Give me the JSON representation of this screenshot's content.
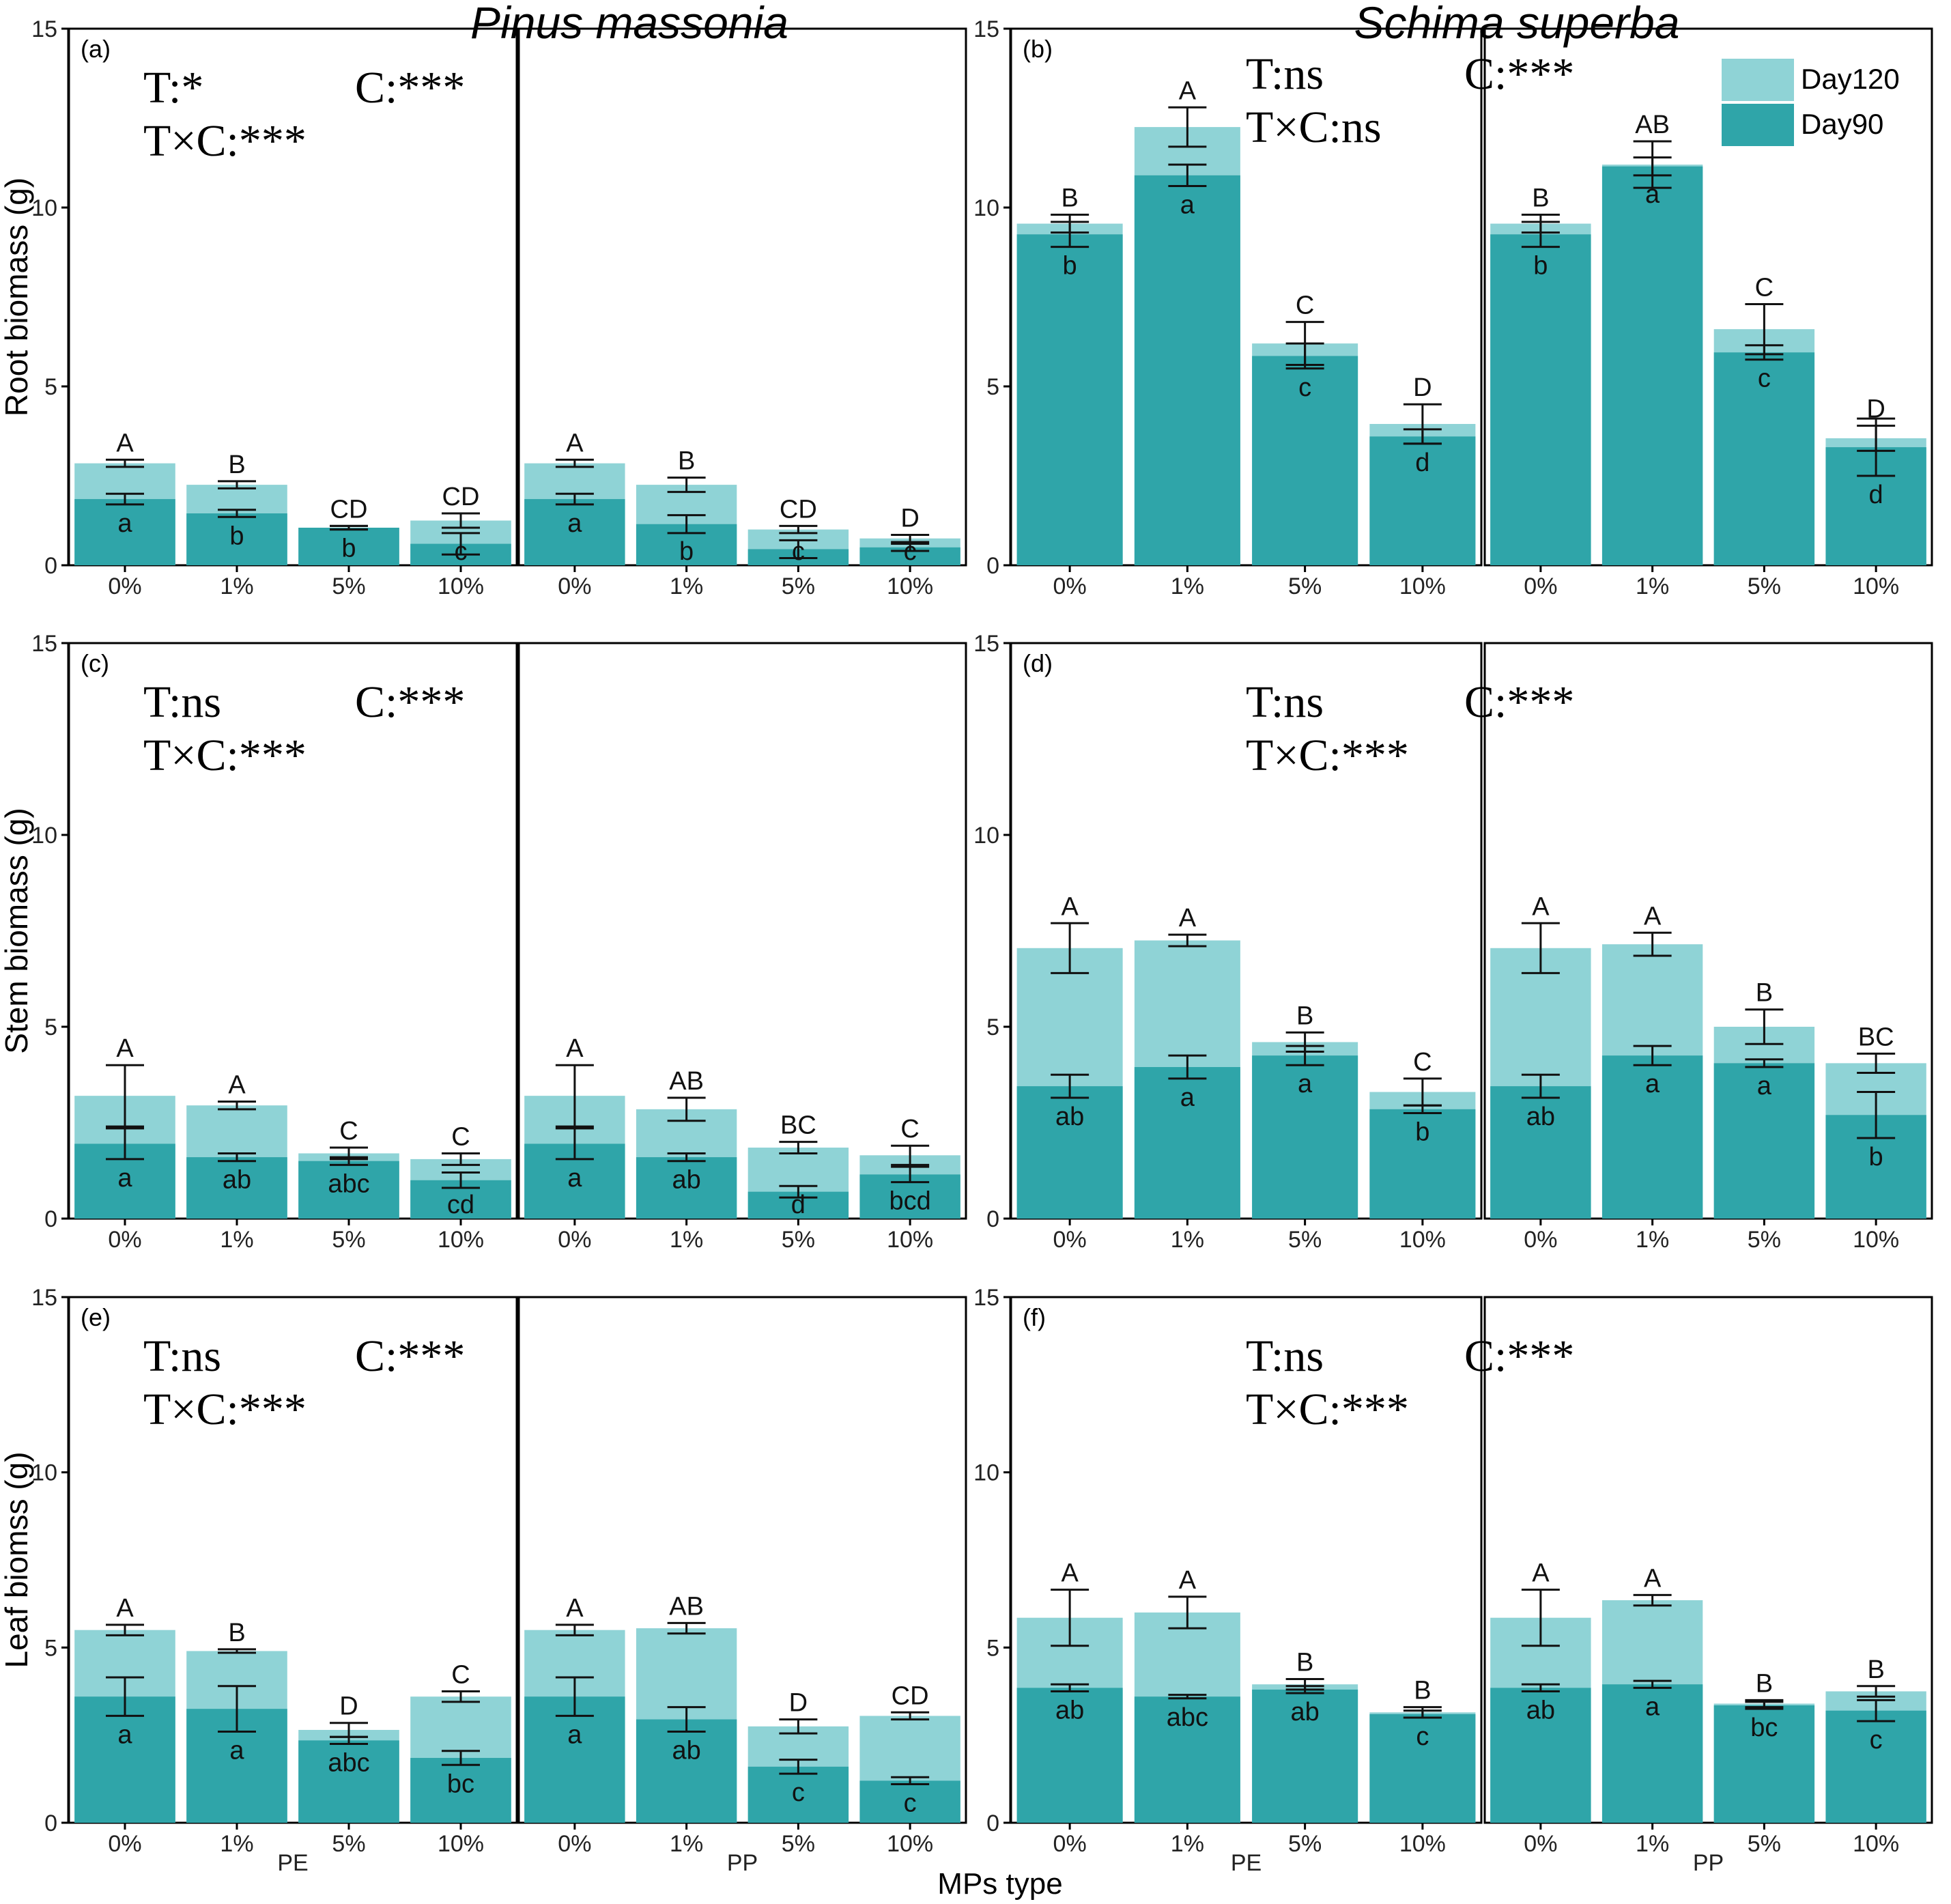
{
  "species_titles": [
    "Pinus massonia",
    "Schima superba"
  ],
  "x_axis_title": "MPs type",
  "colors": {
    "day120": "#8fd3d6",
    "day90": "#2fa5a9",
    "axis": "#000000"
  },
  "legend": {
    "placement": "top-right of panel (b)",
    "items": [
      {
        "label": "Day120",
        "color": "#8fd3d6"
      },
      {
        "label": "Day90",
        "color": "#2fa5a9"
      }
    ]
  },
  "chart_data": [
    {
      "type": "bar",
      "stacked": true,
      "panel": "(a)",
      "species": "Pinus massonia",
      "ylabel": "Root  biomass (g)",
      "ylim": [
        0,
        15
      ],
      "yticks": [
        "0",
        "5",
        "10",
        "15"
      ],
      "stats": [
        "T:*",
        "C:***",
        "T×C:***"
      ],
      "groups": [
        {
          "label": "PE",
          "show_label": false
        },
        {
          "label": "PP",
          "show_label": false
        }
      ],
      "categories": [
        "0%",
        "1%",
        "5%",
        "10%"
      ],
      "day90": [
        1.85,
        1.45,
        1.05,
        0.6,
        1.85,
        1.15,
        0.45,
        0.5
      ],
      "day120": [
        2.85,
        2.25,
        1.05,
        1.25,
        2.85,
        2.25,
        1.0,
        0.75
      ],
      "err_day90": [
        0.15,
        0.1,
        0.05,
        0.3,
        0.15,
        0.25,
        0.25,
        0.1
      ],
      "err_day120": [
        0.1,
        0.1,
        0.05,
        0.2,
        0.1,
        0.2,
        0.1,
        0.1
      ],
      "upper_letters": [
        "A",
        "B",
        "CD",
        "CD",
        "A",
        "B",
        "CD",
        "D"
      ],
      "lower_letters": [
        "a",
        "b",
        "b",
        "c",
        "a",
        "b",
        "c",
        "c"
      ]
    },
    {
      "type": "bar",
      "stacked": true,
      "panel": "(b)",
      "species": "Schima superba",
      "ylabel": "",
      "ylim": [
        0,
        15
      ],
      "yticks": [
        "0",
        "5",
        "10",
        "15"
      ],
      "stats": [
        "T:ns",
        "C:***",
        "T×C:ns"
      ],
      "groups": [
        {
          "label": "PE",
          "show_label": false
        },
        {
          "label": "PP",
          "show_label": false
        }
      ],
      "categories": [
        "0%",
        "1%",
        "5%",
        "10%"
      ],
      "day90": [
        9.25,
        10.9,
        5.85,
        3.6,
        9.25,
        11.15,
        5.95,
        3.3
      ],
      "day120": [
        9.55,
        12.25,
        6.2,
        3.95,
        9.55,
        11.2,
        6.6,
        3.55
      ],
      "err_day90": [
        0.35,
        0.3,
        0.35,
        0.2,
        0.35,
        0.25,
        0.2,
        0.8
      ],
      "err_day120": [
        0.25,
        0.55,
        0.6,
        0.55,
        0.25,
        0.65,
        0.7,
        0.35
      ],
      "upper_letters": [
        "B",
        "A",
        "C",
        "D",
        "B",
        "AB",
        "C",
        "D"
      ],
      "lower_letters": [
        "b",
        "a",
        "c",
        "d",
        "b",
        "a",
        "c",
        "d"
      ]
    },
    {
      "type": "bar",
      "stacked": true,
      "panel": "(c)",
      "species": "Pinus massonia",
      "ylabel": "Stem biomass (g)",
      "ylim": [
        0,
        15
      ],
      "yticks": [
        "0",
        "5",
        "10",
        "15"
      ],
      "stats": [
        "T:ns",
        "C:***",
        "T×C:***"
      ],
      "groups": [
        {
          "label": "PE",
          "show_label": false
        },
        {
          "label": "PP",
          "show_label": false
        }
      ],
      "categories": [
        "0%",
        "1%",
        "5%",
        "10%"
      ],
      "day90": [
        1.95,
        1.6,
        1.5,
        1.0,
        1.95,
        1.6,
        0.7,
        1.15
      ],
      "day120": [
        3.2,
        2.95,
        1.7,
        1.55,
        3.2,
        2.85,
        1.85,
        1.65
      ],
      "err_day90": [
        0.4,
        0.1,
        0.1,
        0.2,
        0.4,
        0.1,
        0.15,
        0.2
      ],
      "err_day120": [
        0.8,
        0.1,
        0.15,
        0.15,
        0.8,
        0.3,
        0.15,
        0.25
      ],
      "upper_letters": [
        "A",
        "A",
        "C",
        "C",
        "A",
        "AB",
        "BC",
        "C"
      ],
      "lower_letters": [
        "a",
        "ab",
        "abc",
        "cd",
        "a",
        "ab",
        "d",
        "bcd"
      ]
    },
    {
      "type": "bar",
      "stacked": true,
      "panel": "(d)",
      "species": "Schima superba",
      "ylabel": "",
      "ylim": [
        0,
        15
      ],
      "yticks": [
        "0",
        "5",
        "10",
        "15"
      ],
      "stats": [
        "T:ns",
        "C:***",
        "T×C:***"
      ],
      "groups": [
        {
          "label": "PE",
          "show_label": false
        },
        {
          "label": "PP",
          "show_label": false
        }
      ],
      "categories": [
        "0%",
        "1%",
        "5%",
        "10%"
      ],
      "day90": [
        3.45,
        3.95,
        4.25,
        2.85,
        3.45,
        4.25,
        4.05,
        2.7
      ],
      "day120": [
        7.05,
        7.25,
        4.6,
        3.3,
        7.05,
        7.15,
        5.0,
        4.05
      ],
      "err_day90": [
        0.3,
        0.3,
        0.25,
        0.1,
        0.3,
        0.25,
        0.1,
        0.6
      ],
      "err_day120": [
        0.65,
        0.15,
        0.25,
        0.35,
        0.65,
        0.3,
        0.45,
        0.25
      ],
      "upper_letters": [
        "A",
        "A",
        "B",
        "C",
        "A",
        "A",
        "B",
        "BC"
      ],
      "lower_letters": [
        "ab",
        "a",
        "a",
        "b",
        "ab",
        "a",
        "a",
        "b"
      ]
    },
    {
      "type": "bar",
      "stacked": true,
      "panel": "(e)",
      "species": "Pinus massonia",
      "ylabel": "Leaf  biomss (g)",
      "ylim": [
        0,
        15
      ],
      "yticks": [
        "0",
        "5",
        "10",
        "15"
      ],
      "stats": [
        "T:ns",
        "C:***",
        "T×C:***"
      ],
      "groups": [
        {
          "label": "PE",
          "show_label": true
        },
        {
          "label": "PP",
          "show_label": true
        }
      ],
      "categories": [
        "0%",
        "1%",
        "5%",
        "10%"
      ],
      "day90": [
        3.6,
        3.25,
        2.35,
        1.85,
        3.6,
        2.95,
        1.6,
        1.2
      ],
      "day120": [
        5.5,
        4.9,
        2.65,
        3.6,
        5.5,
        5.55,
        2.75,
        3.05
      ],
      "err_day90": [
        0.55,
        0.65,
        0.1,
        0.2,
        0.55,
        0.35,
        0.2,
        0.1
      ],
      "err_day120": [
        0.15,
        0.05,
        0.2,
        0.15,
        0.15,
        0.15,
        0.2,
        0.1
      ],
      "upper_letters": [
        "A",
        "B",
        "D",
        "C",
        "A",
        "AB",
        "D",
        "CD"
      ],
      "lower_letters": [
        "a",
        "a",
        "abc",
        "bc",
        "a",
        "ab",
        "c",
        "c"
      ]
    },
    {
      "type": "bar",
      "stacked": true,
      "panel": "(f)",
      "species": "Schima superba",
      "ylabel": "",
      "ylim": [
        0,
        15
      ],
      "yticks": [
        "0",
        "5",
        "10",
        "15"
      ],
      "stats": [
        "T:ns",
        "C:***",
        "T×C:***"
      ],
      "groups": [
        {
          "label": "PE",
          "show_label": true
        },
        {
          "label": "PP",
          "show_label": true
        }
      ],
      "categories": [
        "0%",
        "1%",
        "5%",
        "10%"
      ],
      "day90": [
        3.85,
        3.6,
        3.8,
        3.1,
        3.85,
        3.95,
        3.35,
        3.2
      ],
      "day120": [
        5.85,
        6.0,
        3.95,
        3.15,
        5.85,
        6.35,
        3.4,
        3.75
      ],
      "err_day90": [
        0.1,
        0.05,
        0.1,
        0.1,
        0.1,
        0.1,
        0.1,
        0.3
      ],
      "err_day120": [
        0.8,
        0.45,
        0.15,
        0.15,
        0.8,
        0.15,
        0.1,
        0.15
      ],
      "upper_letters": [
        "A",
        "A",
        "B",
        "B",
        "A",
        "A",
        "B",
        "B"
      ],
      "lower_letters": [
        "ab",
        "abc",
        "ab",
        "c",
        "ab",
        "a",
        "bc",
        "c"
      ]
    }
  ]
}
